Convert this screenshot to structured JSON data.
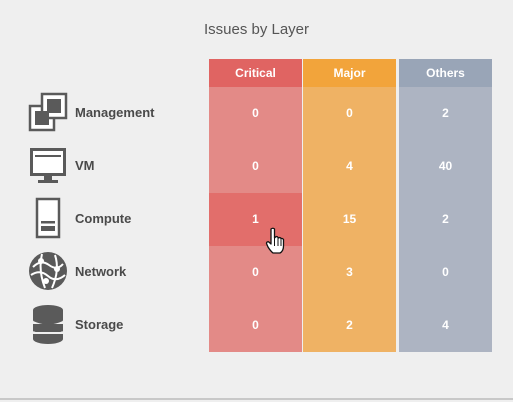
{
  "title": "Issues by Layer",
  "columns": [
    {
      "key": "critical",
      "label": "Critical"
    },
    {
      "key": "major",
      "label": "Major"
    },
    {
      "key": "others",
      "label": "Others"
    }
  ],
  "rows": [
    {
      "label": "Management",
      "icon": "management-icon",
      "critical": "0",
      "major": "0",
      "others": "2"
    },
    {
      "label": "VM",
      "icon": "monitor-icon",
      "critical": "0",
      "major": "4",
      "others": "40"
    },
    {
      "label": "Compute",
      "icon": "server-icon",
      "critical": "1",
      "major": "15",
      "others": "2"
    },
    {
      "label": "Network",
      "icon": "network-globe-icon",
      "critical": "0",
      "major": "3",
      "others": "0"
    },
    {
      "label": "Storage",
      "icon": "database-icon",
      "critical": "0",
      "major": "2",
      "others": "4"
    }
  ],
  "colors": {
    "critical_header": "#e06462",
    "critical_cell": "#e38a87",
    "major_header": "#f2a43b",
    "major_cell": "#efb264",
    "others_header": "#99a5b7",
    "others_cell": "#adb4c2"
  },
  "hovered_cell": {
    "row": "Compute",
    "column": "Critical"
  }
}
